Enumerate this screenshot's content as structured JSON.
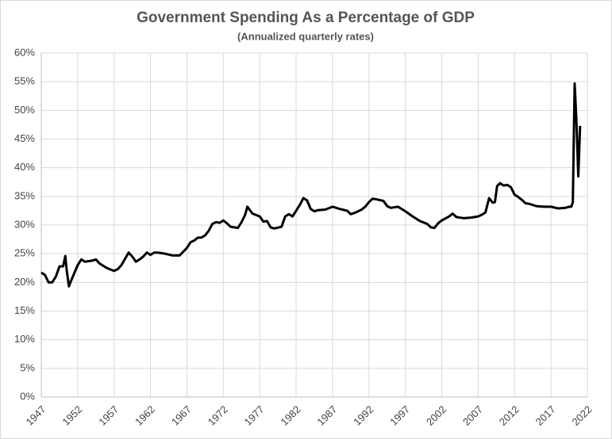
{
  "chart_data": {
    "type": "line",
    "title": "Government Spending As a Percentage of GDP",
    "subtitle": "(Annualized quarterly rates)",
    "x": [
      1947,
      1947.5,
      1948,
      1948.5,
      1949,
      1949.5,
      1950,
      1950.3,
      1950.5,
      1950.8,
      1951,
      1951.5,
      1952,
      1952.5,
      1953,
      1954,
      1954.5,
      1955,
      1956,
      1957,
      1957.5,
      1958,
      1959,
      1959.5,
      1960,
      1960.5,
      1961,
      1961.5,
      1962,
      1962.5,
      1963,
      1964,
      1965,
      1966,
      1967,
      1967.5,
      1968,
      1968.5,
      1969,
      1969.5,
      1970,
      1970.5,
      1971,
      1971.5,
      1972,
      1972.5,
      1973,
      1974,
      1974.5,
      1975,
      1975.3,
      1976,
      1977,
      1977.5,
      1978,
      1978.5,
      1979,
      1980,
      1980.5,
      1981,
      1981.5,
      1982,
      1982.5,
      1983,
      1983.5,
      1984,
      1984.5,
      1985,
      1986,
      1987,
      1988,
      1989,
      1989.5,
      1990,
      1991,
      1991.5,
      1992,
      1992.5,
      1993,
      1994,
      1994.5,
      1995,
      1996,
      1997,
      1998,
      1999,
      2000,
      2000.5,
      2001,
      2001.5,
      2002,
      2003,
      2003.5,
      2004,
      2005,
      2006,
      2007,
      2007.5,
      2008,
      2008.5,
      2009,
      2009.3,
      2009.6,
      2010,
      2010.5,
      2011,
      2011.5,
      2012,
      2012.5,
      2013,
      2013.5,
      2014,
      2015,
      2016,
      2017,
      2018,
      2019,
      2019.5,
      2019.8,
      2020,
      2020.25,
      2020.5,
      2020.75,
      2021
    ],
    "series": [
      {
        "color": "#000000",
        "values": [
          21.7,
          21.3,
          20,
          20,
          21,
          22.8,
          22.8,
          24.6,
          22,
          19.3,
          20,
          21.5,
          23,
          24,
          23.6,
          23.8,
          24,
          23.3,
          22.5,
          22,
          22.3,
          23,
          25.2,
          24.5,
          23.6,
          24,
          24.5,
          25.2,
          24.8,
          25.2,
          25.2,
          25,
          24.7,
          24.7,
          26,
          27,
          27.3,
          27.8,
          27.8,
          28.2,
          29,
          30.2,
          30.5,
          30.4,
          30.8,
          30.3,
          29.7,
          29.5,
          30.5,
          31.8,
          33.2,
          32,
          31.5,
          30.6,
          30.7,
          29.6,
          29.4,
          29.7,
          31.5,
          31.9,
          31.5,
          32.5,
          33.5,
          34.7,
          34.3,
          32.8,
          32.4,
          32.6,
          32.7,
          33.2,
          32.8,
          32.5,
          31.9,
          32.1,
          32.7,
          33.2,
          34,
          34.6,
          34.5,
          34.2,
          33.3,
          33,
          33.2,
          32.4,
          31.5,
          30.7,
          30.2,
          29.6,
          29.5,
          30.3,
          30.8,
          31.5,
          32,
          31.4,
          31.2,
          31.3,
          31.5,
          31.8,
          32.2,
          34.7,
          33.9,
          34,
          36.8,
          37.3,
          36.9,
          37,
          36.6,
          35.3,
          34.9,
          34.4,
          33.8,
          33.7,
          33.3,
          33.2,
          33.2,
          32.9,
          33,
          33.2,
          33.2,
          34,
          54.7,
          48,
          38.5,
          47.3
        ]
      }
    ],
    "xlim": [
      1947,
      2022
    ],
    "xticks": [
      1947,
      1952,
      1957,
      1962,
      1967,
      1972,
      1977,
      1982,
      1987,
      1992,
      1997,
      2002,
      2007,
      2012,
      2017,
      2022
    ],
    "ylim": [
      0,
      60
    ],
    "yticks": [
      {
        "value": 0,
        "label": "0%"
      },
      {
        "value": 5,
        "label": "5%"
      },
      {
        "value": 10,
        "label": "10%"
      },
      {
        "value": 15,
        "label": "15%"
      },
      {
        "value": 20,
        "label": "20%"
      },
      {
        "value": 25,
        "label": "25%"
      },
      {
        "value": 30,
        "label": "30%"
      },
      {
        "value": 35,
        "label": "35%"
      },
      {
        "value": 40,
        "label": "40%"
      },
      {
        "value": 45,
        "label": "45%"
      },
      {
        "value": 50,
        "label": "50%"
      },
      {
        "value": 55,
        "label": "55%"
      },
      {
        "value": 60,
        "label": "60%"
      }
    ],
    "grid": true
  }
}
